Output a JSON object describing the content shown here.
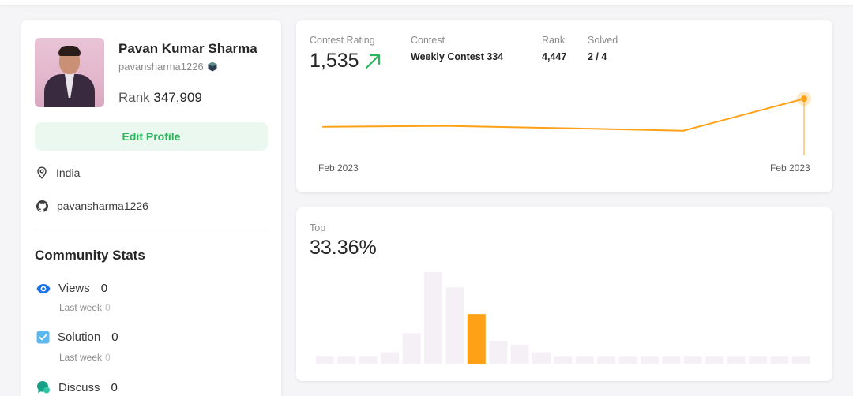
{
  "profile": {
    "name": "Pavan Kumar Sharma",
    "username": "pavansharma1226",
    "rank_label": "Rank",
    "rank_value": "347,909",
    "edit_button": "Edit Profile",
    "location": "India",
    "github": "pavansharma1226"
  },
  "community": {
    "title": "Community Stats",
    "views": {
      "label": "Views",
      "value": "0",
      "sub_label": "Last week",
      "sub_value": "0"
    },
    "solution": {
      "label": "Solution",
      "value": "0",
      "sub_label": "Last week",
      "sub_value": "0"
    },
    "discuss": {
      "label": "Discuss",
      "value": "0"
    }
  },
  "contest": {
    "rating_label": "Contest Rating",
    "rating_value": "1,535",
    "contest_label": "Contest",
    "contest_value": "Weekly Contest 334",
    "rank_label": "Rank",
    "rank_value": "4,447",
    "solved_label": "Solved",
    "solved_value": "2 / 4",
    "x_start_label": "Feb 2023",
    "x_end_label": "Feb 2023"
  },
  "top": {
    "label": "Top",
    "value": "33.36%"
  },
  "chart_data": [
    {
      "type": "line",
      "x": [
        "Feb 2023",
        "",
        "",
        "",
        "Feb 2023"
      ],
      "y": [
        1500,
        1501,
        1498,
        1495,
        1535
      ],
      "ylim": [
        1480,
        1545
      ],
      "grid": false,
      "color": "#ffa116",
      "highlight_index": 4
    },
    {
      "type": "bar",
      "values": [
        2,
        2,
        2,
        3,
        8,
        24,
        20,
        13,
        6,
        5,
        3,
        2,
        2,
        2,
        2,
        2,
        2,
        2,
        2,
        2,
        2,
        2,
        2
      ],
      "highlight_index": 7,
      "colors": {
        "bar": "#f5f0f5",
        "highlight": "#ffa116"
      },
      "grid": false
    }
  ],
  "colors": {
    "accent": "#ffa116",
    "green": "#2db55d",
    "edit_bg": "#eaf8f0"
  }
}
